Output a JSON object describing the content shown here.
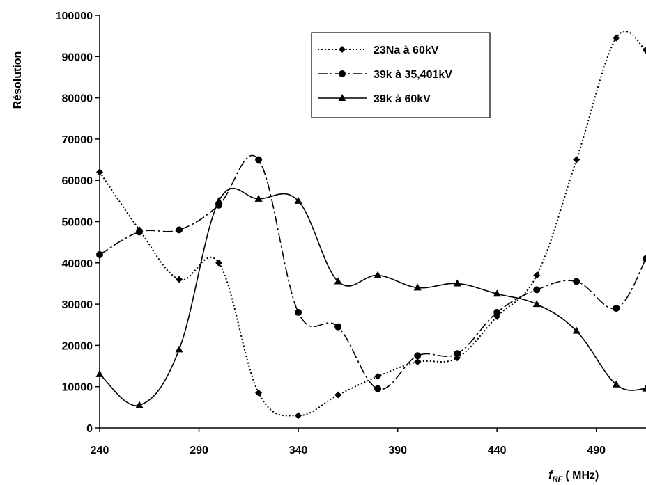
{
  "chart_data": {
    "type": "line",
    "xlabel": "f",
    "xlabel_sub": "RF",
    "xlabel_unit": "( MHz)",
    "ylabel": "Résolution",
    "xlim": [
      240,
      515
    ],
    "ylim": [
      0,
      100000
    ],
    "x_ticks": [
      "240",
      "290",
      "340",
      "390",
      "440",
      "490"
    ],
    "y_ticks": [
      "0",
      "10000",
      "20000",
      "30000",
      "40000",
      "50000",
      "60000",
      "70000",
      "80000",
      "90000",
      "100000"
    ],
    "grid": false,
    "legend_position": "top-right",
    "x": [
      240,
      260,
      280,
      300,
      320,
      340,
      360,
      380,
      400,
      420,
      440,
      460,
      480,
      500,
      515
    ],
    "series": [
      {
        "name": "23Na à 60kV",
        "marker": "diamond",
        "dash": "dotted",
        "values": [
          62000,
          48000,
          36000,
          40000,
          8500,
          3000,
          8000,
          12500,
          16000,
          17000,
          27000,
          37000,
          65000,
          94500,
          91500
        ]
      },
      {
        "name": "39k à 35,401kV",
        "marker": "circle",
        "dash": "dashdot",
        "values": [
          42000,
          47500,
          48000,
          54000,
          65000,
          28000,
          24500,
          9500,
          17500,
          18000,
          28000,
          33500,
          35500,
          29000,
          41000
        ]
      },
      {
        "name": "39k à 60kV",
        "marker": "triangle",
        "dash": "solid",
        "values": [
          13000,
          5500,
          19000,
          55000,
          55500,
          55000,
          35500,
          37000,
          34000,
          35000,
          32500,
          30000,
          23500,
          10500,
          9500
        ]
      }
    ]
  },
  "colors": {
    "line": "#000000",
    "background": "#ffffff"
  }
}
